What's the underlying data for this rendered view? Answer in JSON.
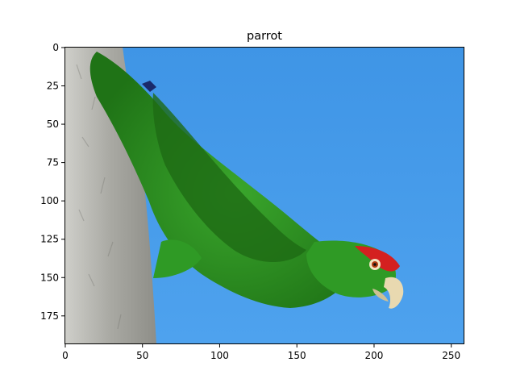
{
  "figure": {
    "title": "parrot",
    "image_subject": "parrot",
    "image_size": {
      "width": 259,
      "height": 194
    },
    "x_axis": {
      "ticks": [
        0,
        50,
        100,
        150,
        200,
        250
      ]
    },
    "y_axis": {
      "ticks": [
        0,
        25,
        50,
        75,
        100,
        125,
        150,
        175
      ]
    },
    "colors": {
      "sky": "#4a9be8",
      "bark": "#b9b9b4",
      "feather_green": "#2f9a25",
      "feather_dark": "#1f6d16",
      "crown_red": "#d42020",
      "beak": "#e9d9b0"
    }
  }
}
